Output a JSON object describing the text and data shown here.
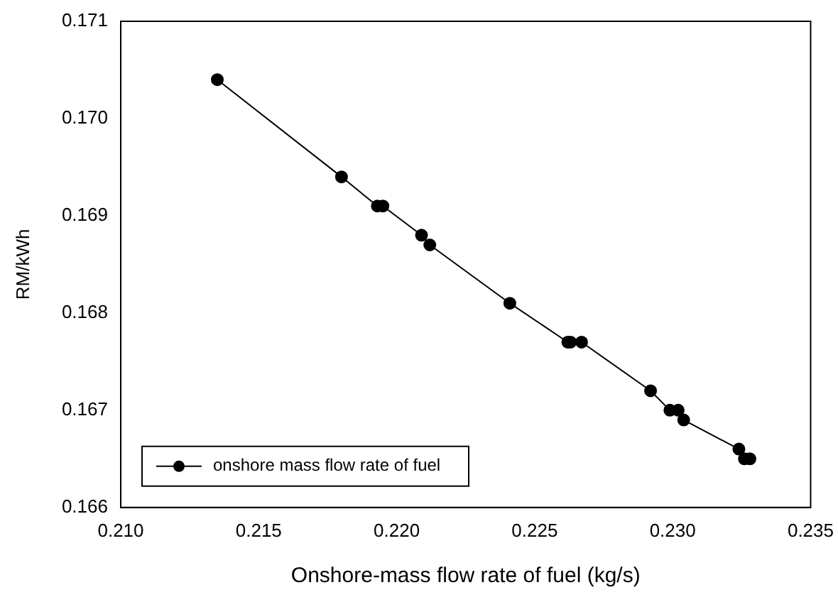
{
  "chart_data": {
    "type": "line",
    "xlabel": "Onshore-mass flow rate of fuel (kg/s)",
    "ylabel": "RM/kWh",
    "xlim": [
      0.21,
      0.235
    ],
    "xticks": [
      {
        "value": 0.21,
        "label": "0.210"
      },
      {
        "value": 0.215,
        "label": "0.215"
      },
      {
        "value": 0.22,
        "label": "0.220"
      },
      {
        "value": 0.225,
        "label": "0.225"
      },
      {
        "value": 0.23,
        "label": "0.230"
      },
      {
        "value": 0.235,
        "label": "0.235"
      }
    ],
    "ylim": [
      0.166,
      0.171
    ],
    "yticks": [
      0.166,
      0.167,
      0.168,
      0.169,
      {
        "value": 0.17,
        "label": "0.170"
      },
      0.171
    ],
    "x": [
      0.2135,
      0.218,
      0.2193,
      0.2195,
      0.2209,
      0.2212,
      0.2241,
      0.2262,
      0.2263,
      0.2267,
      0.2292,
      0.2299,
      0.2302,
      0.2304,
      0.2324,
      0.2326,
      0.2328
    ],
    "series": [
      {
        "name": "onshore mass flow rate of fuel",
        "color": "#000000",
        "values": [
          0.1704,
          0.1694,
          0.1691,
          0.1691,
          0.1688,
          0.1687,
          0.1681,
          0.1677,
          0.1677,
          0.1677,
          0.1672,
          0.167,
          0.167,
          0.1669,
          0.1666,
          0.1665,
          0.1665
        ]
      }
    ],
    "grid": false,
    "legend": "bottom left",
    "marker": "circle",
    "line_style": "solid"
  }
}
